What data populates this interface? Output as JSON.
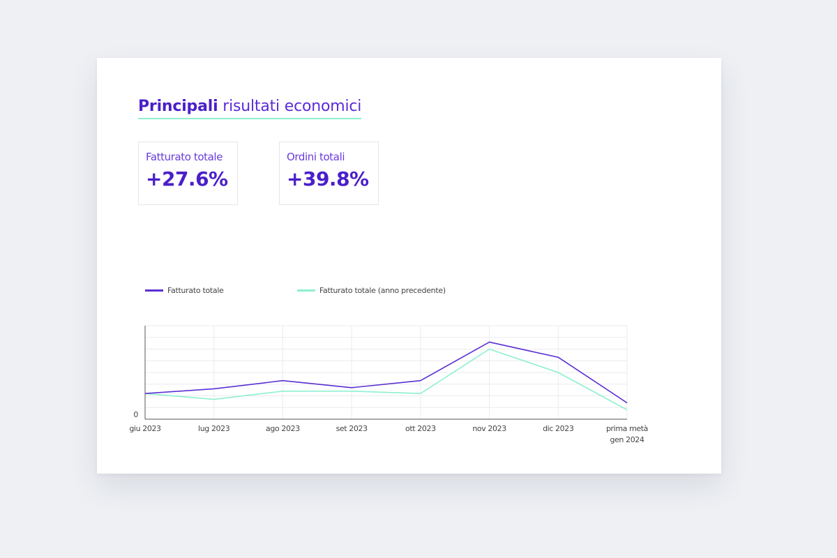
{
  "header": {
    "title_bold": "Principali",
    "title_rest": "risultati economici"
  },
  "kpis": [
    {
      "label": "Fatturato totale",
      "value": "+27.6%"
    },
    {
      "label": "Ordini totali",
      "value": "+39.8%"
    }
  ],
  "colors": {
    "current": "#5a2fd3",
    "previous": "#8ef0cf",
    "grid": "#ebebef",
    "axis": "#555555"
  },
  "chart_data": {
    "type": "line",
    "categories": [
      "giu 2023",
      "lug 2023",
      "ago 2023",
      "set 2023",
      "ott 2023",
      "nov 2023",
      "dic 2023",
      "prima metà gen 2024"
    ],
    "category_lines": [
      [
        "giu 2023"
      ],
      [
        "lug 2023"
      ],
      [
        "ago 2023"
      ],
      [
        "set 2023"
      ],
      [
        "ott 2023"
      ],
      [
        "nov 2023"
      ],
      [
        "dic 2023"
      ],
      [
        "prima metà",
        "gen 2024"
      ]
    ],
    "series": [
      {
        "name": "Fatturato totale",
        "values": [
          2.2,
          2.6,
          3.3,
          2.7,
          3.3,
          6.6,
          5.3,
          1.4
        ]
      },
      {
        "name": "Fatturato totale (anno precedente)",
        "values": [
          2.2,
          1.7,
          2.4,
          2.4,
          2.2,
          6.0,
          4.0,
          0.8
        ]
      }
    ],
    "ylim": [
      0,
      8
    ],
    "ytick_labels": [
      "0"
    ],
    "grid": true,
    "legend_position": "top-left"
  }
}
